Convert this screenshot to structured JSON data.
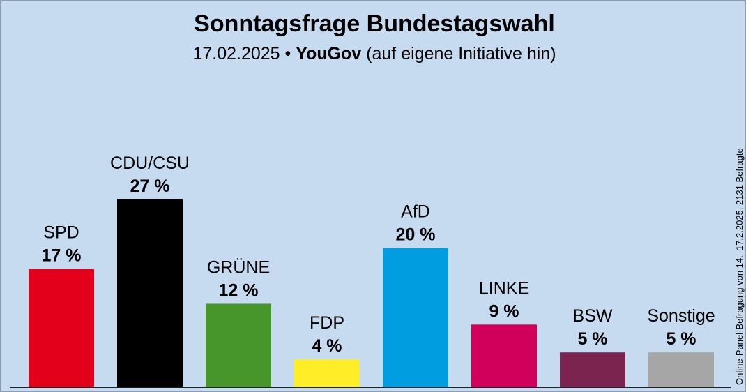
{
  "header": {
    "title": "Sonntagsfrage Bundestagswahl",
    "date": "17.02.2025",
    "separator": "•",
    "pollster": "YouGov",
    "note": "(auf eigene Initiative hin)"
  },
  "side_note": "Online-Panel-Befragung von 14.–17.2.2025, 2131 Befragte",
  "chart_data": {
    "type": "bar",
    "categories": [
      "SPD",
      "CDU/CSU",
      "GRÜNE",
      "FDP",
      "AfD",
      "LINKE",
      "BSW",
      "Sonstige"
    ],
    "values": [
      17,
      27,
      12,
      4,
      20,
      9,
      5,
      5
    ],
    "value_labels": [
      "17 %",
      "27 %",
      "12 %",
      "4 %",
      "20 %",
      "9 %",
      "5 %",
      "5 %"
    ],
    "unit": "%",
    "colors": [
      "#e3001b",
      "#000000",
      "#46962b",
      "#ffed28",
      "#009ee0",
      "#d1005a",
      "#7b2450",
      "#a6a6a6"
    ],
    "ylim": [
      0,
      27
    ],
    "grid": false,
    "legend": "none"
  }
}
